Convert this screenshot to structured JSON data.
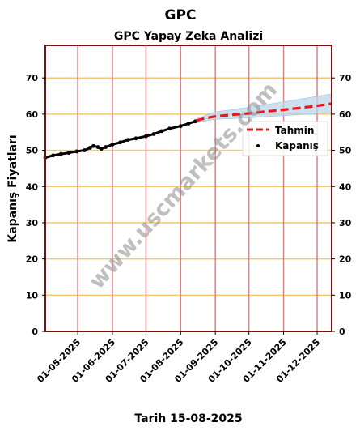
{
  "chart_data": {
    "type": "line",
    "page_title": "GPC",
    "title": "GPC Yapay Zeka Analizi",
    "ylabel": "Kapanış Fiyatları",
    "xlabel": "Tarih 15-08-2025",
    "ylim": [
      0,
      79
    ],
    "y_ticks": [
      0,
      10,
      20,
      30,
      40,
      50,
      60,
      70
    ],
    "x_range": [
      "2025-04-02",
      "2025-12-14"
    ],
    "x_ticks": [
      {
        "date": "2025-05-01",
        "label": "01-05-2025"
      },
      {
        "date": "2025-06-01",
        "label": "01-06-2025"
      },
      {
        "date": "2025-07-01",
        "label": "01-07-2025"
      },
      {
        "date": "2025-08-01",
        "label": "01-08-2025"
      },
      {
        "date": "2025-09-01",
        "label": "01-09-2025"
      },
      {
        "date": "2025-10-01",
        "label": "01-10-2025"
      },
      {
        "date": "2025-11-01",
        "label": "01-11-2025"
      },
      {
        "date": "2025-12-01",
        "label": "01-12-2025"
      }
    ],
    "grid": {
      "horizontal_color": "#f5c76a",
      "vertical_color": "#e08080"
    },
    "legend_position": "right",
    "series": [
      {
        "name": "Tahmin",
        "style": "dashed",
        "color": "#e8191a",
        "points": [
          {
            "x": "2025-08-15",
            "y": 58.2
          },
          {
            "x": "2025-08-22",
            "y": 58.8
          },
          {
            "x": "2025-09-01",
            "y": 59.4
          },
          {
            "x": "2025-09-15",
            "y": 59.8
          },
          {
            "x": "2025-10-01",
            "y": 60.2
          },
          {
            "x": "2025-10-15",
            "y": 60.7
          },
          {
            "x": "2025-11-01",
            "y": 61.2
          },
          {
            "x": "2025-11-15",
            "y": 61.7
          },
          {
            "x": "2025-12-01",
            "y": 62.3
          },
          {
            "x": "2025-12-14",
            "y": 62.9
          }
        ]
      },
      {
        "name": "Kapanış",
        "style": "dots",
        "color": "#000000",
        "points": [
          {
            "x": "2025-04-02",
            "y": 48.0
          },
          {
            "x": "2025-04-09",
            "y": 48.6
          },
          {
            "x": "2025-04-16",
            "y": 49.0
          },
          {
            "x": "2025-04-23",
            "y": 49.3
          },
          {
            "x": "2025-04-30",
            "y": 49.7
          },
          {
            "x": "2025-05-07",
            "y": 50.0
          },
          {
            "x": "2025-05-12",
            "y": 50.7
          },
          {
            "x": "2025-05-15",
            "y": 51.2
          },
          {
            "x": "2025-05-19",
            "y": 50.9
          },
          {
            "x": "2025-05-22",
            "y": 50.4
          },
          {
            "x": "2025-05-26",
            "y": 50.9
          },
          {
            "x": "2025-06-01",
            "y": 51.6
          },
          {
            "x": "2025-06-08",
            "y": 52.2
          },
          {
            "x": "2025-06-15",
            "y": 52.9
          },
          {
            "x": "2025-06-22",
            "y": 53.3
          },
          {
            "x": "2025-07-01",
            "y": 53.9
          },
          {
            "x": "2025-07-08",
            "y": 54.5
          },
          {
            "x": "2025-07-15",
            "y": 55.3
          },
          {
            "x": "2025-07-22",
            "y": 56.0
          },
          {
            "x": "2025-08-01",
            "y": 56.7
          },
          {
            "x": "2025-08-08",
            "y": 57.4
          },
          {
            "x": "2025-08-14",
            "y": 58.0
          }
        ]
      }
    ],
    "confidence_band": {
      "color": "#bcd6ea",
      "points": [
        {
          "x": "2025-08-15",
          "low": 57.6,
          "high": 58.7
        },
        {
          "x": "2025-09-01",
          "low": 58.6,
          "high": 60.6
        },
        {
          "x": "2025-10-01",
          "low": 59.0,
          "high": 61.9
        },
        {
          "x": "2025-11-01",
          "low": 59.6,
          "high": 63.4
        },
        {
          "x": "2025-12-14",
          "low": 60.4,
          "high": 65.6
        }
      ]
    }
  },
  "watermark": "www.uscmarkets.com"
}
